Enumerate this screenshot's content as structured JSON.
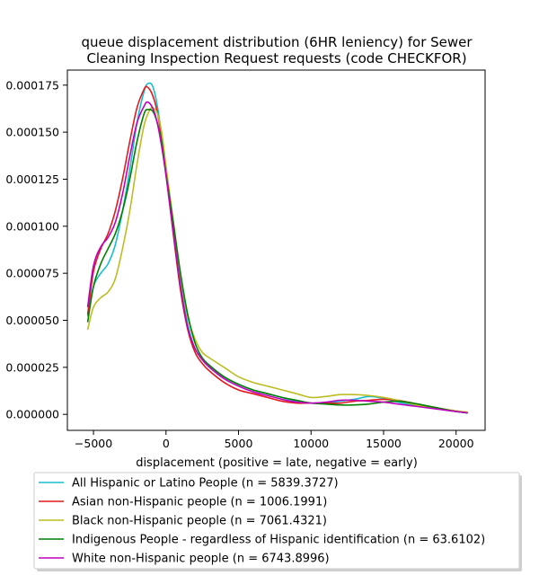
{
  "chart_data": {
    "type": "line",
    "title_lines": [
      "queue displacement distribution (6HR leniency) for Sewer",
      "Cleaning Inspection Request  requests (code CHECKFOR)"
    ],
    "xlabel": "displacement (positive = late, negative = early)",
    "ylabel": "",
    "xlim": [
      -6800,
      22000
    ],
    "ylim": [
      -8.5e-06,
      0.000183
    ],
    "xticks": [
      -5000,
      0,
      5000,
      10000,
      15000,
      20000
    ],
    "xtick_labels": [
      "−5000",
      "0",
      "5000",
      "10000",
      "15000",
      "20000"
    ],
    "yticks": [
      0.0,
      2.5e-05,
      5e-05,
      7.5e-05,
      0.0001,
      0.000125,
      0.00015,
      0.000175
    ],
    "ytick_labels": [
      "0.000000",
      "0.000025",
      "0.000050",
      "0.000075",
      "0.000100",
      "0.000125",
      "0.000150",
      "0.000175"
    ],
    "grid": false,
    "legend_placement": "below",
    "series": [
      {
        "name": "All Hispanic or Latino People (n = 5839.3727)",
        "color": "#17becf",
        "points": [
          [
            -5400,
            5.2e-05
          ],
          [
            -5000,
            6.8e-05
          ],
          [
            -4500,
            7.5e-05
          ],
          [
            -4000,
            8e-05
          ],
          [
            -3500,
            9e-05
          ],
          [
            -3000,
            0.000108
          ],
          [
            -2500,
            0.00013
          ],
          [
            -2000,
            0.000155
          ],
          [
            -1500,
            0.000172
          ],
          [
            -1200,
            0.000176
          ],
          [
            -900,
            0.000174
          ],
          [
            -600,
            0.000164
          ],
          [
            -300,
            0.000148
          ],
          [
            0,
            0.000128
          ],
          [
            500,
            0.0001
          ],
          [
            1000,
            7e-05
          ],
          [
            1500,
            4.8e-05
          ],
          [
            2000,
            3.5e-05
          ],
          [
            2500,
            3e-05
          ],
          [
            3000,
            2.6e-05
          ],
          [
            4000,
            2e-05
          ],
          [
            5000,
            1.6e-05
          ],
          [
            6000,
            1.3e-05
          ],
          [
            7000,
            1.1e-05
          ],
          [
            8000,
            9e-06
          ],
          [
            9000,
            7e-06
          ],
          [
            10000,
            6e-06
          ],
          [
            11000,
            6e-06
          ],
          [
            12000,
            7e-06
          ],
          [
            13000,
            8e-06
          ],
          [
            14000,
            9.5e-06
          ],
          [
            15000,
            8.5e-06
          ],
          [
            16000,
            6.5e-06
          ],
          [
            17000,
            5e-06
          ],
          [
            18000,
            4e-06
          ],
          [
            19000,
            3e-06
          ],
          [
            20000,
            1.5e-06
          ],
          [
            20800,
            8e-07
          ]
        ]
      },
      {
        "name": "Asian non-Hispanic people (n = 1006.1991)",
        "color": "#e31a1c",
        "points": [
          [
            -5400,
            5.3e-05
          ],
          [
            -5000,
            7.6e-05
          ],
          [
            -4500,
            8.8e-05
          ],
          [
            -4000,
            9.6e-05
          ],
          [
            -3500,
            0.000108
          ],
          [
            -3000,
            0.000125
          ],
          [
            -2500,
            0.000145
          ],
          [
            -2000,
            0.000163
          ],
          [
            -1500,
            0.000173
          ],
          [
            -1300,
            0.000174
          ],
          [
            -1000,
            0.000171
          ],
          [
            -700,
            0.000164
          ],
          [
            -400,
            0.000152
          ],
          [
            0,
            0.000128
          ],
          [
            500,
            9.6e-05
          ],
          [
            1000,
            6.6e-05
          ],
          [
            1500,
            4.5e-05
          ],
          [
            2000,
            3.3e-05
          ],
          [
            2500,
            2.7e-05
          ],
          [
            3000,
            2.3e-05
          ],
          [
            4000,
            1.7e-05
          ],
          [
            5000,
            1.3e-05
          ],
          [
            6000,
            1.1e-05
          ],
          [
            7000,
            9e-06
          ],
          [
            8000,
            7e-06
          ],
          [
            9000,
            6e-06
          ],
          [
            10000,
            6e-06
          ],
          [
            11000,
            6e-06
          ],
          [
            12000,
            6e-06
          ],
          [
            13000,
            7e-06
          ],
          [
            14000,
            7.5e-06
          ],
          [
            15000,
            8e-06
          ],
          [
            16000,
            7.5e-06
          ],
          [
            17000,
            6e-06
          ],
          [
            18000,
            4.5e-06
          ],
          [
            19000,
            3e-06
          ],
          [
            20000,
            1.8e-06
          ],
          [
            20800,
            1e-06
          ]
        ]
      },
      {
        "name": "Black non-Hispanic people (n = 7061.4321)",
        "color": "#bcbd22",
        "points": [
          [
            -5400,
            4.5e-05
          ],
          [
            -5000,
            5.7e-05
          ],
          [
            -4500,
            6.2e-05
          ],
          [
            -4000,
            6.5e-05
          ],
          [
            -3500,
            7.2e-05
          ],
          [
            -3000,
            8.8e-05
          ],
          [
            -2500,
            0.000108
          ],
          [
            -2000,
            0.000133
          ],
          [
            -1500,
            0.000154
          ],
          [
            -1100,
            0.000162
          ],
          [
            -900,
            0.000163
          ],
          [
            -600,
            0.00016
          ],
          [
            -300,
            0.00015
          ],
          [
            0,
            0.000132
          ],
          [
            500,
            0.000103
          ],
          [
            1000,
            7.4e-05
          ],
          [
            1500,
            5.2e-05
          ],
          [
            2000,
            4e-05
          ],
          [
            2500,
            3.3e-05
          ],
          [
            3000,
            3e-05
          ],
          [
            4000,
            2.5e-05
          ],
          [
            5000,
            2e-05
          ],
          [
            6000,
            1.7e-05
          ],
          [
            7000,
            1.5e-05
          ],
          [
            8000,
            1.3e-05
          ],
          [
            9000,
            1.1e-05
          ],
          [
            10000,
            9e-06
          ],
          [
            11000,
            9.5e-06
          ],
          [
            12000,
            1.05e-05
          ],
          [
            13000,
            1.05e-05
          ],
          [
            14000,
            1e-05
          ],
          [
            15000,
            9e-06
          ],
          [
            16000,
            7.5e-06
          ],
          [
            17000,
            5.5e-06
          ],
          [
            18000,
            4e-06
          ],
          [
            19000,
            3e-06
          ],
          [
            20000,
            1.8e-06
          ],
          [
            20800,
            1.2e-06
          ]
        ]
      },
      {
        "name": "Indigenous People - regardless of Hispanic identification (n = 63.6102)",
        "color": "#008000",
        "points": [
          [
            -5400,
            4.9e-05
          ],
          [
            -5000,
            6.8e-05
          ],
          [
            -4500,
            8e-05
          ],
          [
            -4000,
            8.8e-05
          ],
          [
            -3500,
            9.6e-05
          ],
          [
            -3000,
            0.000108
          ],
          [
            -2500,
            0.000125
          ],
          [
            -2000,
            0.000145
          ],
          [
            -1500,
            0.00016
          ],
          [
            -1200,
            0.000162
          ],
          [
            -900,
            0.000161
          ],
          [
            -600,
            0.000155
          ],
          [
            -300,
            0.000145
          ],
          [
            0,
            0.000128
          ],
          [
            500,
            0.000102
          ],
          [
            1000,
            7.5e-05
          ],
          [
            1500,
            5.3e-05
          ],
          [
            2000,
            3.8e-05
          ],
          [
            2500,
            3e-05
          ],
          [
            3000,
            2.6e-05
          ],
          [
            4000,
            2e-05
          ],
          [
            5000,
            1.6e-05
          ],
          [
            6000,
            1.3e-05
          ],
          [
            7000,
            1.1e-05
          ],
          [
            8000,
            9e-06
          ],
          [
            9000,
            7.5e-06
          ],
          [
            10000,
            6e-06
          ],
          [
            11000,
            5.5e-06
          ],
          [
            12000,
            5e-06
          ],
          [
            13000,
            5e-06
          ],
          [
            14000,
            5.5e-06
          ],
          [
            15000,
            6.5e-06
          ],
          [
            16000,
            7e-06
          ],
          [
            17000,
            6e-06
          ],
          [
            18000,
            4.5e-06
          ],
          [
            19000,
            3e-06
          ],
          [
            20000,
            1.5e-06
          ],
          [
            20800,
            8e-07
          ]
        ]
      },
      {
        "name": "White non-Hispanic people (n = 6743.8996)",
        "color": "#bf00bf",
        "points": [
          [
            -5400,
            5.7e-05
          ],
          [
            -5000,
            7.9e-05
          ],
          [
            -4500,
            8.9e-05
          ],
          [
            -4000,
            9.4e-05
          ],
          [
            -3500,
            0.000102
          ],
          [
            -3000,
            0.000117
          ],
          [
            -2500,
            0.000137
          ],
          [
            -2000,
            0.000155
          ],
          [
            -1500,
            0.000164
          ],
          [
            -1300,
            0.000166
          ],
          [
            -1000,
            0.000164
          ],
          [
            -700,
            0.000158
          ],
          [
            -400,
            0.000147
          ],
          [
            0,
            0.000127
          ],
          [
            500,
            9.7e-05
          ],
          [
            1000,
            6.8e-05
          ],
          [
            1500,
            4.6e-05
          ],
          [
            2000,
            3.5e-05
          ],
          [
            2500,
            2.9e-05
          ],
          [
            3000,
            2.5e-05
          ],
          [
            4000,
            1.9e-05
          ],
          [
            5000,
            1.5e-05
          ],
          [
            6000,
            1.2e-05
          ],
          [
            7000,
            1e-05
          ],
          [
            8000,
            8e-06
          ],
          [
            9000,
            6.5e-06
          ],
          [
            10000,
            6e-06
          ],
          [
            11000,
            6.5e-06
          ],
          [
            12000,
            7.5e-06
          ],
          [
            13000,
            7.5e-06
          ],
          [
            14000,
            7e-06
          ],
          [
            15000,
            6.5e-06
          ],
          [
            16000,
            5.5e-06
          ],
          [
            17000,
            4.5e-06
          ],
          [
            18000,
            3.5e-06
          ],
          [
            19000,
            2.5e-06
          ],
          [
            20000,
            1.5e-06
          ],
          [
            20800,
            8e-07
          ]
        ]
      }
    ]
  }
}
